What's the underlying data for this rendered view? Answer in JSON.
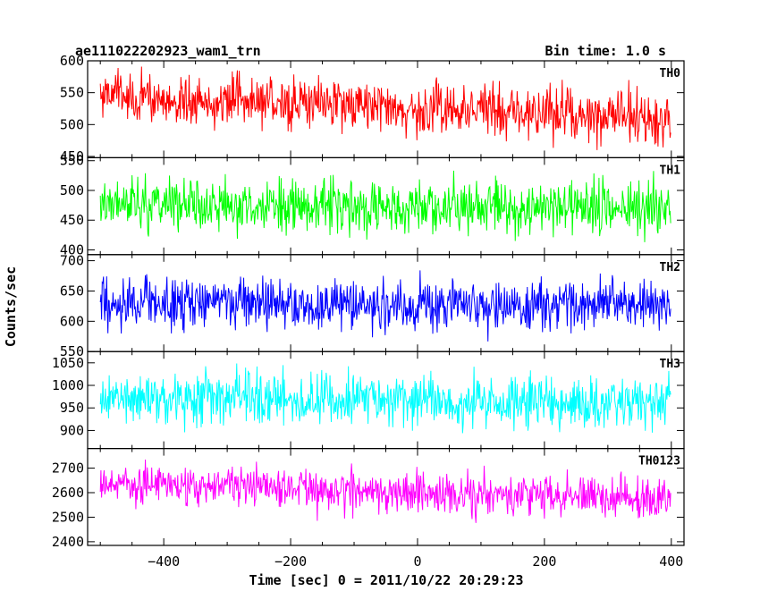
{
  "chart_data": {
    "type": "line",
    "title": "ae111022202923_wam1_trn",
    "subtitle": "Bin time: 1.0 s",
    "xlabel": "Time [sec] 0 = 2011/10/22 20:29:23",
    "ylabel": "Counts/sec",
    "xlim": [
      -520,
      420
    ],
    "x_ticks": [
      -400,
      -200,
      0,
      200,
      400
    ],
    "x_range": [
      -500,
      399
    ],
    "bin_time": 1.0,
    "grid": false,
    "panels": [
      {
        "name": "TH0",
        "color": "#ff0000",
        "ylim": [
          448,
          600
        ],
        "y_ticks": [
          450,
          500,
          550,
          600
        ],
        "mean_start": 545,
        "mean_end": 510,
        "amplitude": 35
      },
      {
        "name": "TH1",
        "color": "#00ff00",
        "ylim": [
          392,
          555
        ],
        "y_ticks": [
          400,
          450,
          500,
          550
        ],
        "mean_start": 478,
        "mean_end": 472,
        "amplitude": 38
      },
      {
        "name": "TH2",
        "color": "#0000ff",
        "ylim": [
          550,
          710
        ],
        "y_ticks": [
          550,
          600,
          650,
          700
        ],
        "mean_start": 628,
        "mean_end": 628,
        "amplitude": 38
      },
      {
        "name": "TH3",
        "color": "#00ffff",
        "ylim": [
          860,
          1075
        ],
        "y_ticks": [
          900,
          950,
          1000,
          1050
        ],
        "mean_start": 972,
        "mean_end": 962,
        "amplitude": 50
      },
      {
        "name": "TH0123",
        "color": "#ff00ff",
        "ylim": [
          2385,
          2780
        ],
        "y_ticks": [
          2400,
          2500,
          2600,
          2700
        ],
        "mean_start": 2635,
        "mean_end": 2575,
        "amplitude": 75
      }
    ]
  }
}
